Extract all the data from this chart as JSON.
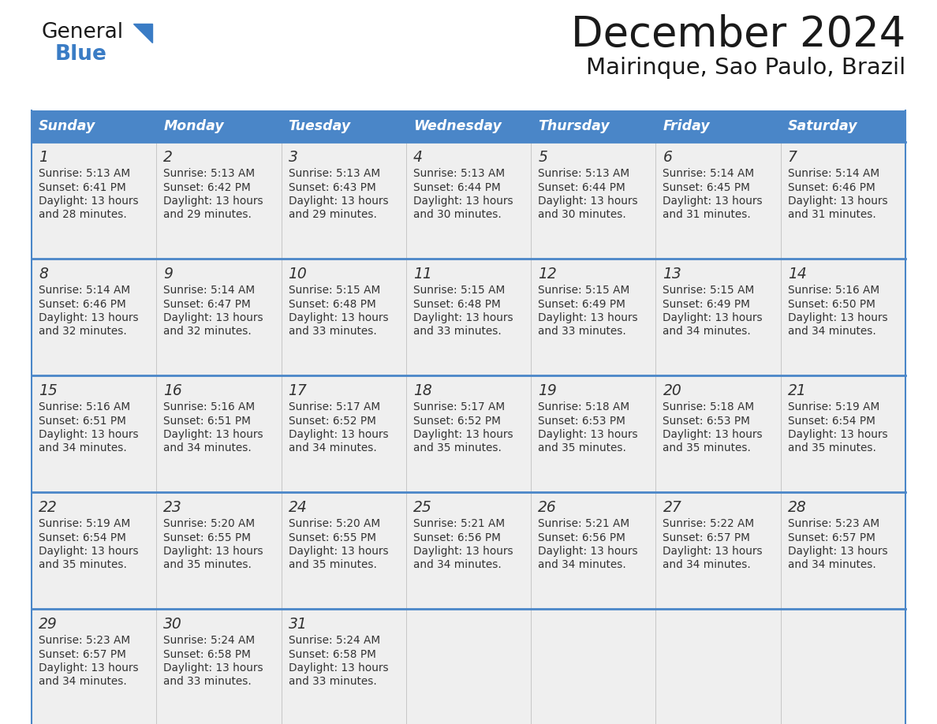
{
  "title": "December 2024",
  "subtitle": "Mairinque, Sao Paulo, Brazil",
  "header_color": "#4A86C8",
  "header_text_color": "#FFFFFF",
  "cell_bg_color": "#EFEFEF",
  "empty_cell_bg_color": "#EFEFEF",
  "border_color": "#4A86C8",
  "divider_color": "#C0C0C0",
  "text_color": "#333333",
  "days_of_week": [
    "Sunday",
    "Monday",
    "Tuesday",
    "Wednesday",
    "Thursday",
    "Friday",
    "Saturday"
  ],
  "weeks": [
    [
      {
        "day": 1,
        "sunrise": "5:13 AM",
        "sunset": "6:41 PM",
        "daylight": "13 hours and 28 minutes."
      },
      {
        "day": 2,
        "sunrise": "5:13 AM",
        "sunset": "6:42 PM",
        "daylight": "13 hours and 29 minutes."
      },
      {
        "day": 3,
        "sunrise": "5:13 AM",
        "sunset": "6:43 PM",
        "daylight": "13 hours and 29 minutes."
      },
      {
        "day": 4,
        "sunrise": "5:13 AM",
        "sunset": "6:44 PM",
        "daylight": "13 hours and 30 minutes."
      },
      {
        "day": 5,
        "sunrise": "5:13 AM",
        "sunset": "6:44 PM",
        "daylight": "13 hours and 30 minutes."
      },
      {
        "day": 6,
        "sunrise": "5:14 AM",
        "sunset": "6:45 PM",
        "daylight": "13 hours and 31 minutes."
      },
      {
        "day": 7,
        "sunrise": "5:14 AM",
        "sunset": "6:46 PM",
        "daylight": "13 hours and 31 minutes."
      }
    ],
    [
      {
        "day": 8,
        "sunrise": "5:14 AM",
        "sunset": "6:46 PM",
        "daylight": "13 hours and 32 minutes."
      },
      {
        "day": 9,
        "sunrise": "5:14 AM",
        "sunset": "6:47 PM",
        "daylight": "13 hours and 32 minutes."
      },
      {
        "day": 10,
        "sunrise": "5:15 AM",
        "sunset": "6:48 PM",
        "daylight": "13 hours and 33 minutes."
      },
      {
        "day": 11,
        "sunrise": "5:15 AM",
        "sunset": "6:48 PM",
        "daylight": "13 hours and 33 minutes."
      },
      {
        "day": 12,
        "sunrise": "5:15 AM",
        "sunset": "6:49 PM",
        "daylight": "13 hours and 33 minutes."
      },
      {
        "day": 13,
        "sunrise": "5:15 AM",
        "sunset": "6:49 PM",
        "daylight": "13 hours and 34 minutes."
      },
      {
        "day": 14,
        "sunrise": "5:16 AM",
        "sunset": "6:50 PM",
        "daylight": "13 hours and 34 minutes."
      }
    ],
    [
      {
        "day": 15,
        "sunrise": "5:16 AM",
        "sunset": "6:51 PM",
        "daylight": "13 hours and 34 minutes."
      },
      {
        "day": 16,
        "sunrise": "5:16 AM",
        "sunset": "6:51 PM",
        "daylight": "13 hours and 34 minutes."
      },
      {
        "day": 17,
        "sunrise": "5:17 AM",
        "sunset": "6:52 PM",
        "daylight": "13 hours and 34 minutes."
      },
      {
        "day": 18,
        "sunrise": "5:17 AM",
        "sunset": "6:52 PM",
        "daylight": "13 hours and 35 minutes."
      },
      {
        "day": 19,
        "sunrise": "5:18 AM",
        "sunset": "6:53 PM",
        "daylight": "13 hours and 35 minutes."
      },
      {
        "day": 20,
        "sunrise": "5:18 AM",
        "sunset": "6:53 PM",
        "daylight": "13 hours and 35 minutes."
      },
      {
        "day": 21,
        "sunrise": "5:19 AM",
        "sunset": "6:54 PM",
        "daylight": "13 hours and 35 minutes."
      }
    ],
    [
      {
        "day": 22,
        "sunrise": "5:19 AM",
        "sunset": "6:54 PM",
        "daylight": "13 hours and 35 minutes."
      },
      {
        "day": 23,
        "sunrise": "5:20 AM",
        "sunset": "6:55 PM",
        "daylight": "13 hours and 35 minutes."
      },
      {
        "day": 24,
        "sunrise": "5:20 AM",
        "sunset": "6:55 PM",
        "daylight": "13 hours and 35 minutes."
      },
      {
        "day": 25,
        "sunrise": "5:21 AM",
        "sunset": "6:56 PM",
        "daylight": "13 hours and 34 minutes."
      },
      {
        "day": 26,
        "sunrise": "5:21 AM",
        "sunset": "6:56 PM",
        "daylight": "13 hours and 34 minutes."
      },
      {
        "day": 27,
        "sunrise": "5:22 AM",
        "sunset": "6:57 PM",
        "daylight": "13 hours and 34 minutes."
      },
      {
        "day": 28,
        "sunrise": "5:23 AM",
        "sunset": "6:57 PM",
        "daylight": "13 hours and 34 minutes."
      }
    ],
    [
      {
        "day": 29,
        "sunrise": "5:23 AM",
        "sunset": "6:57 PM",
        "daylight": "13 hours and 34 minutes."
      },
      {
        "day": 30,
        "sunrise": "5:24 AM",
        "sunset": "6:58 PM",
        "daylight": "13 hours and 33 minutes."
      },
      {
        "day": 31,
        "sunrise": "5:24 AM",
        "sunset": "6:58 PM",
        "daylight": "13 hours and 33 minutes."
      },
      null,
      null,
      null,
      null
    ]
  ],
  "logo_general_color": "#1A1A1A",
  "logo_blue_color": "#3A7CC5",
  "figsize": [
    11.88,
    9.18
  ],
  "dpi": 100
}
